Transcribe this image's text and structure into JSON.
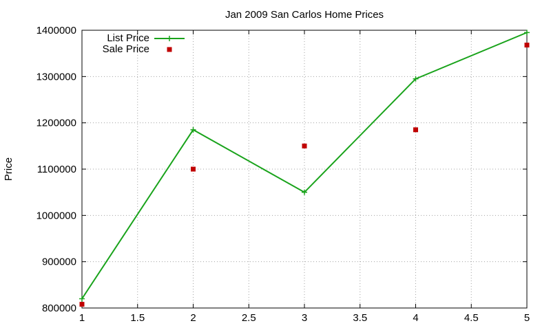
{
  "chart_data": {
    "type": "line",
    "title": "Jan 2009 San Carlos Home Prices",
    "xlabel": "",
    "ylabel": "Price",
    "xlim": [
      1,
      5
    ],
    "ylim": [
      800000,
      1400000
    ],
    "x_ticks": [
      "1",
      "1.5",
      "2",
      "2.5",
      "3",
      "3.5",
      "4",
      "4.5",
      "5"
    ],
    "y_ticks": [
      "800000",
      "900000",
      "1000000",
      "1100000",
      "1200000",
      "1300000",
      "1400000"
    ],
    "grid": true,
    "legend_position": "top-left",
    "series": [
      {
        "name": "List Price",
        "style": "line-with-plus-markers",
        "color": "#19a31b",
        "x": [
          1,
          2,
          3,
          4,
          5
        ],
        "y": [
          820000,
          1185000,
          1050000,
          1295000,
          1395000
        ]
      },
      {
        "name": "Sale Price",
        "style": "square-markers",
        "color": "#c00000",
        "x": [
          1,
          2,
          3,
          4,
          5
        ],
        "y": [
          808000,
          1100000,
          1150000,
          1185000,
          1368000
        ]
      }
    ]
  }
}
